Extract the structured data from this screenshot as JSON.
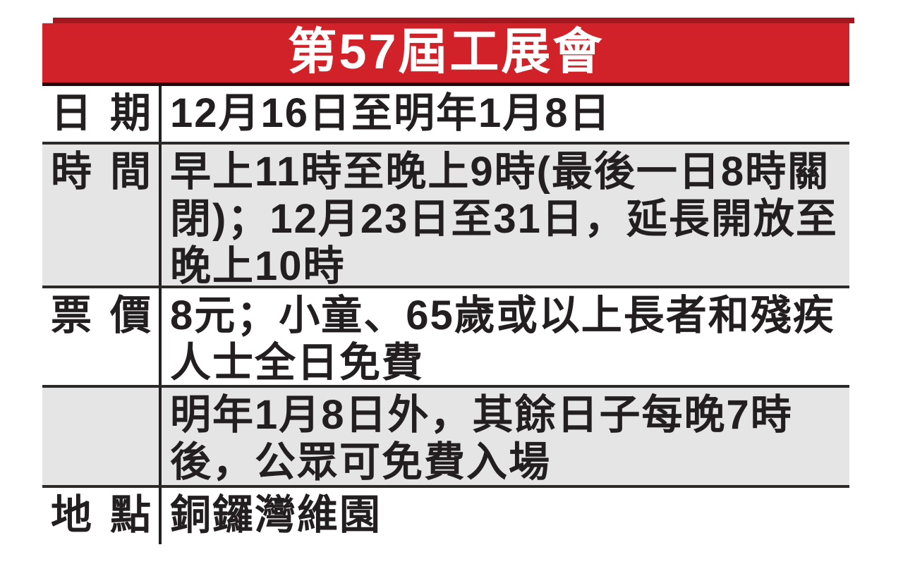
{
  "table": {
    "title": "第57屆工展會",
    "rows": [
      {
        "label": "日期",
        "content": "12月16日至明年1月8日"
      },
      {
        "label": "時間",
        "content": "早上11時至晚上9時(最後一日8時關\n閉)；12月23日至31日，延長開放至\n晚上10時"
      },
      {
        "label": "票價",
        "content": "8元；小童、65歲或以上長者和殘疾\n人士全日免費"
      },
      {
        "label": "",
        "content": "明年1月8日外，其餘日子每晚7時\n後，公眾可免費入場"
      },
      {
        "label": "地點",
        "content": "銅鑼灣維園"
      }
    ],
    "colors": {
      "header_red": "#d1222a",
      "header_top_stripe": "#a3181e",
      "header_bottom_border": "#260809",
      "shaded_row_bg": "#e5e5e6",
      "row_border": "#2b2a29",
      "column_divider": "#231f20",
      "body_text": "#231f20",
      "title_text": "#ffffff"
    }
  }
}
